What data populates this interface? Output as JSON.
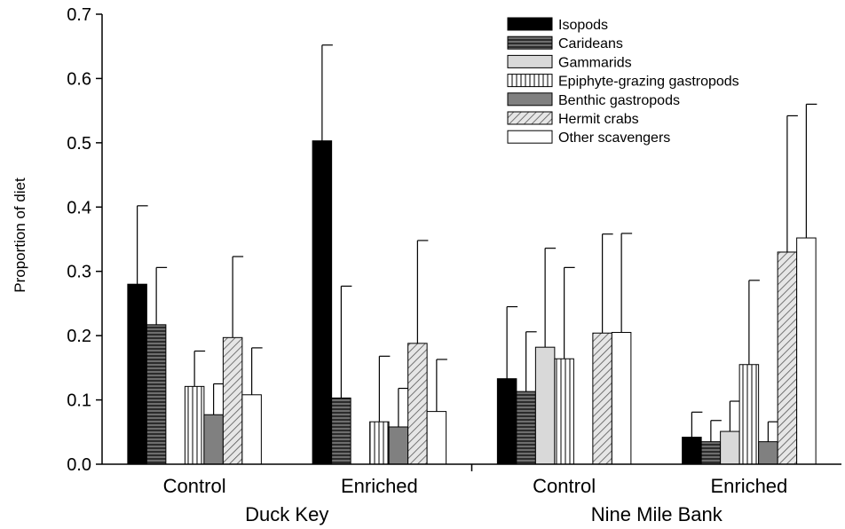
{
  "chart_data": {
    "type": "bar",
    "ylabel": "Proportion of diet",
    "xlabel": "",
    "ylim": [
      0,
      0.7
    ],
    "yticks": [
      "0.0",
      "0.1",
      "0.2",
      "0.3",
      "0.4",
      "0.5",
      "0.6",
      "0.7"
    ],
    "categories": [
      "Control",
      "Enriched",
      "Control",
      "Enriched"
    ],
    "sites": [
      "Duck Key",
      "Nine Mile Bank"
    ],
    "legend_position": "top-right",
    "series": [
      {
        "name": "Isopods",
        "pattern": "solid-black",
        "values": [
          0.28,
          0.503,
          0.133,
          0.042
        ],
        "errors": [
          0.402,
          0.652,
          0.245,
          0.081
        ]
      },
      {
        "name": "Carideans",
        "pattern": "horizontal-lines",
        "values": [
          0.217,
          0.103,
          0.113,
          0.035
        ],
        "errors": [
          0.306,
          0.277,
          0.206,
          0.068
        ]
      },
      {
        "name": "Gammarids",
        "pattern": "light-gray",
        "values": [
          null,
          null,
          0.182,
          0.051
        ],
        "errors": [
          null,
          null,
          0.336,
          0.098
        ]
      },
      {
        "name": "Epiphyte-grazing gastropods",
        "pattern": "vertical-lines",
        "values": [
          0.121,
          0.066,
          0.164,
          0.155
        ],
        "errors": [
          0.176,
          0.168,
          0.306,
          0.286
        ]
      },
      {
        "name": "Benthic gastropods",
        "pattern": "dark-gray",
        "values": [
          0.077,
          0.058,
          null,
          0.035
        ],
        "errors": [
          0.125,
          0.118,
          null,
          0.066
        ]
      },
      {
        "name": "Hermit crabs",
        "pattern": "diagonal-hatch",
        "values": [
          0.197,
          0.188,
          0.204,
          0.33
        ],
        "errors": [
          0.323,
          0.348,
          0.358,
          0.542
        ]
      },
      {
        "name": "Other scavengers",
        "pattern": "white",
        "values": [
          0.108,
          0.082,
          0.205,
          0.352
        ],
        "errors": [
          0.181,
          0.163,
          0.359,
          0.56
        ]
      }
    ]
  }
}
